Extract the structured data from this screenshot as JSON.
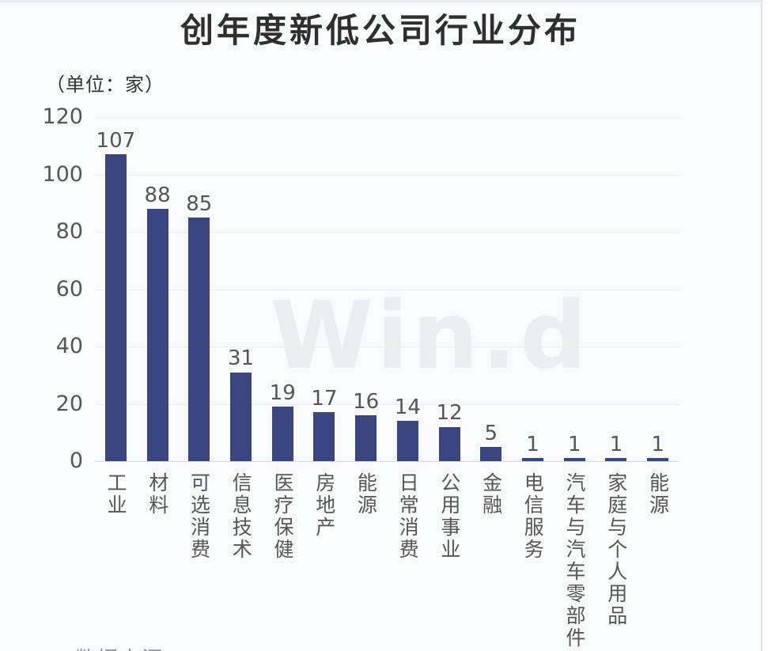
{
  "title": "创年度新低公司行业分布",
  "unit_label": "（单位：家）",
  "watermark": "Win.d",
  "footer_partial": "数据来源",
  "colors": {
    "bar": "#3a4680",
    "background": "#f9fafd",
    "grid": "#e9e9ee",
    "axis": "#d7d7dc",
    "text": "#565656",
    "title": "#2f2f2f",
    "watermark": "#ecedf0"
  },
  "chart_data": {
    "type": "bar",
    "title": "创年度新低公司行业分布",
    "ylabel": "（单位：家）",
    "categories": [
      "工业",
      "材料",
      "可选消费",
      "信息技术",
      "医疗保健",
      "房地产",
      "能源",
      "日常消费",
      "公用事业",
      "金融",
      "电信服务",
      "汽车与汽车零部件",
      "家庭与个人用品",
      "能源"
    ],
    "values": [
      107,
      88,
      85,
      31,
      19,
      17,
      16,
      14,
      12,
      5,
      1,
      1,
      1,
      1
    ],
    "ylim": [
      0,
      120
    ],
    "yticks": [
      0,
      20,
      40,
      60,
      80,
      100,
      120
    ],
    "grid": true,
    "legend": false,
    "data_labels": true,
    "watermark": "Win.d"
  }
}
